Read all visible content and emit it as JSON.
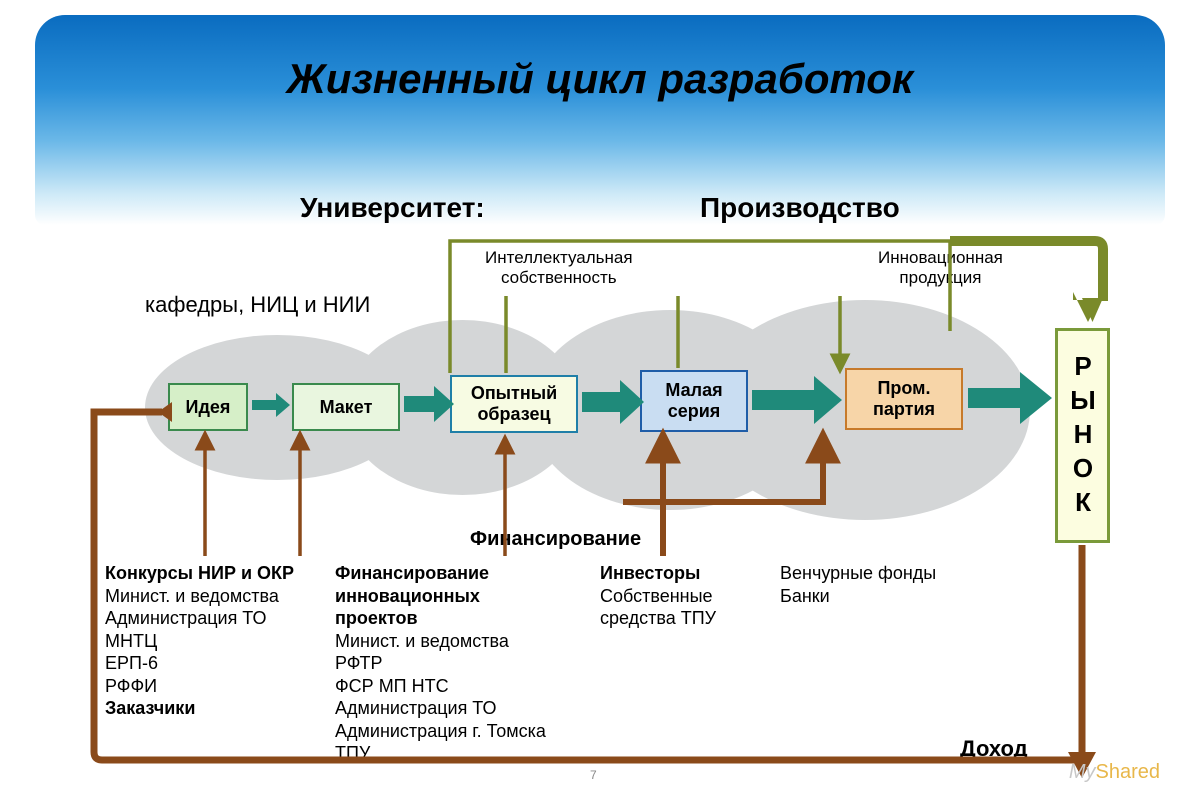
{
  "title": "Жизненный цикл разработок",
  "headings": {
    "university": "Университет:",
    "production": "Производство"
  },
  "labels": {
    "departments": "кафедры, НИЦ и НИИ",
    "ip": "Интеллектуальная\nсобственность",
    "innovative_products": "Инновационная\nпродукция",
    "financing": "Финансирование",
    "income": "Доход"
  },
  "stages": {
    "idea": {
      "text": "Идея",
      "bg": "#d6efc8",
      "border": "#3a8a4d"
    },
    "maket": {
      "text": "Макет",
      "bg": "#e9f6df",
      "border": "#3a8a4d"
    },
    "prototype": {
      "text": "Опытный\nобразец",
      "bg": "#f7fbe3",
      "border": "#1f7fa8"
    },
    "smallbatch": {
      "text": "Малая\nсерия",
      "bg": "#c9ddf2",
      "border": "#1f5da8"
    },
    "prombatch": {
      "text": "Пром.\nпартия",
      "bg": "#f7d5a8",
      "border": "#c77a2a"
    }
  },
  "market": "РЫНОК",
  "columns": {
    "c1": {
      "lines": [
        {
          "t": "Конкурсы НИР и ОКР",
          "b": true
        },
        {
          "t": "Минист. и ведомства"
        },
        {
          "t": "Администрация ТО"
        },
        {
          "t": "МНТЦ"
        },
        {
          "t": "ЕРП-6"
        },
        {
          "t": "РФФИ"
        },
        {
          "t": "Заказчики",
          "b": true
        }
      ]
    },
    "c2": {
      "lines": [
        {
          "t": "Финансирование",
          "b": true
        },
        {
          "t": "инновационных",
          "b": true
        },
        {
          "t": "проектов",
          "b": true
        },
        {
          "t": "Минист. и ведомства"
        },
        {
          "t": "РФТР"
        },
        {
          "t": "ФСР МП НТС"
        },
        {
          "t": "Администрация ТО"
        },
        {
          "t": "Администрация г. Томска"
        },
        {
          "t": "ТПУ"
        }
      ]
    },
    "c3": {
      "lines": [
        {
          "t": "Инвесторы",
          "b": true
        },
        {
          "t": "Собственные"
        },
        {
          "t": "средства ТПУ"
        }
      ]
    },
    "c4": {
      "lines": [
        {
          "t": "Венчурные фонды"
        },
        {
          "t": "Банки"
        }
      ]
    }
  },
  "colors": {
    "olive": "#7a8a2a",
    "brown": "#8a4a1a",
    "teal": "#1f8a7a",
    "ellipse": "#d4d6d7"
  },
  "pagefoot": "7",
  "watermark_a": "My",
  "watermark_b": "Shared"
}
